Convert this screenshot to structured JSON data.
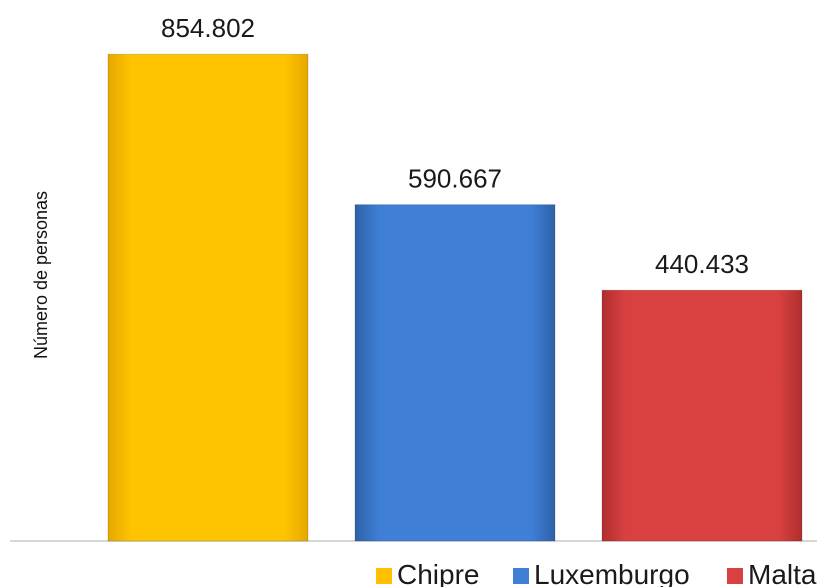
{
  "chart_data": {
    "type": "bar",
    "categories": [
      "Chipre",
      "Luxemburgo",
      "Malta"
    ],
    "values": [
      854802,
      590667,
      440433
    ],
    "value_labels": [
      "854.802",
      "590.667",
      "440.433"
    ],
    "title": "",
    "xlabel": "",
    "ylabel": "Número de personas",
    "ylim": [
      0,
      950000
    ],
    "grid": false,
    "legend_position": "bottom",
    "legend": [
      "Chipre",
      "Luxemburgo",
      "Malta"
    ],
    "colors": [
      "#FFC000",
      "#3F7FD6",
      "#D94141"
    ]
  }
}
